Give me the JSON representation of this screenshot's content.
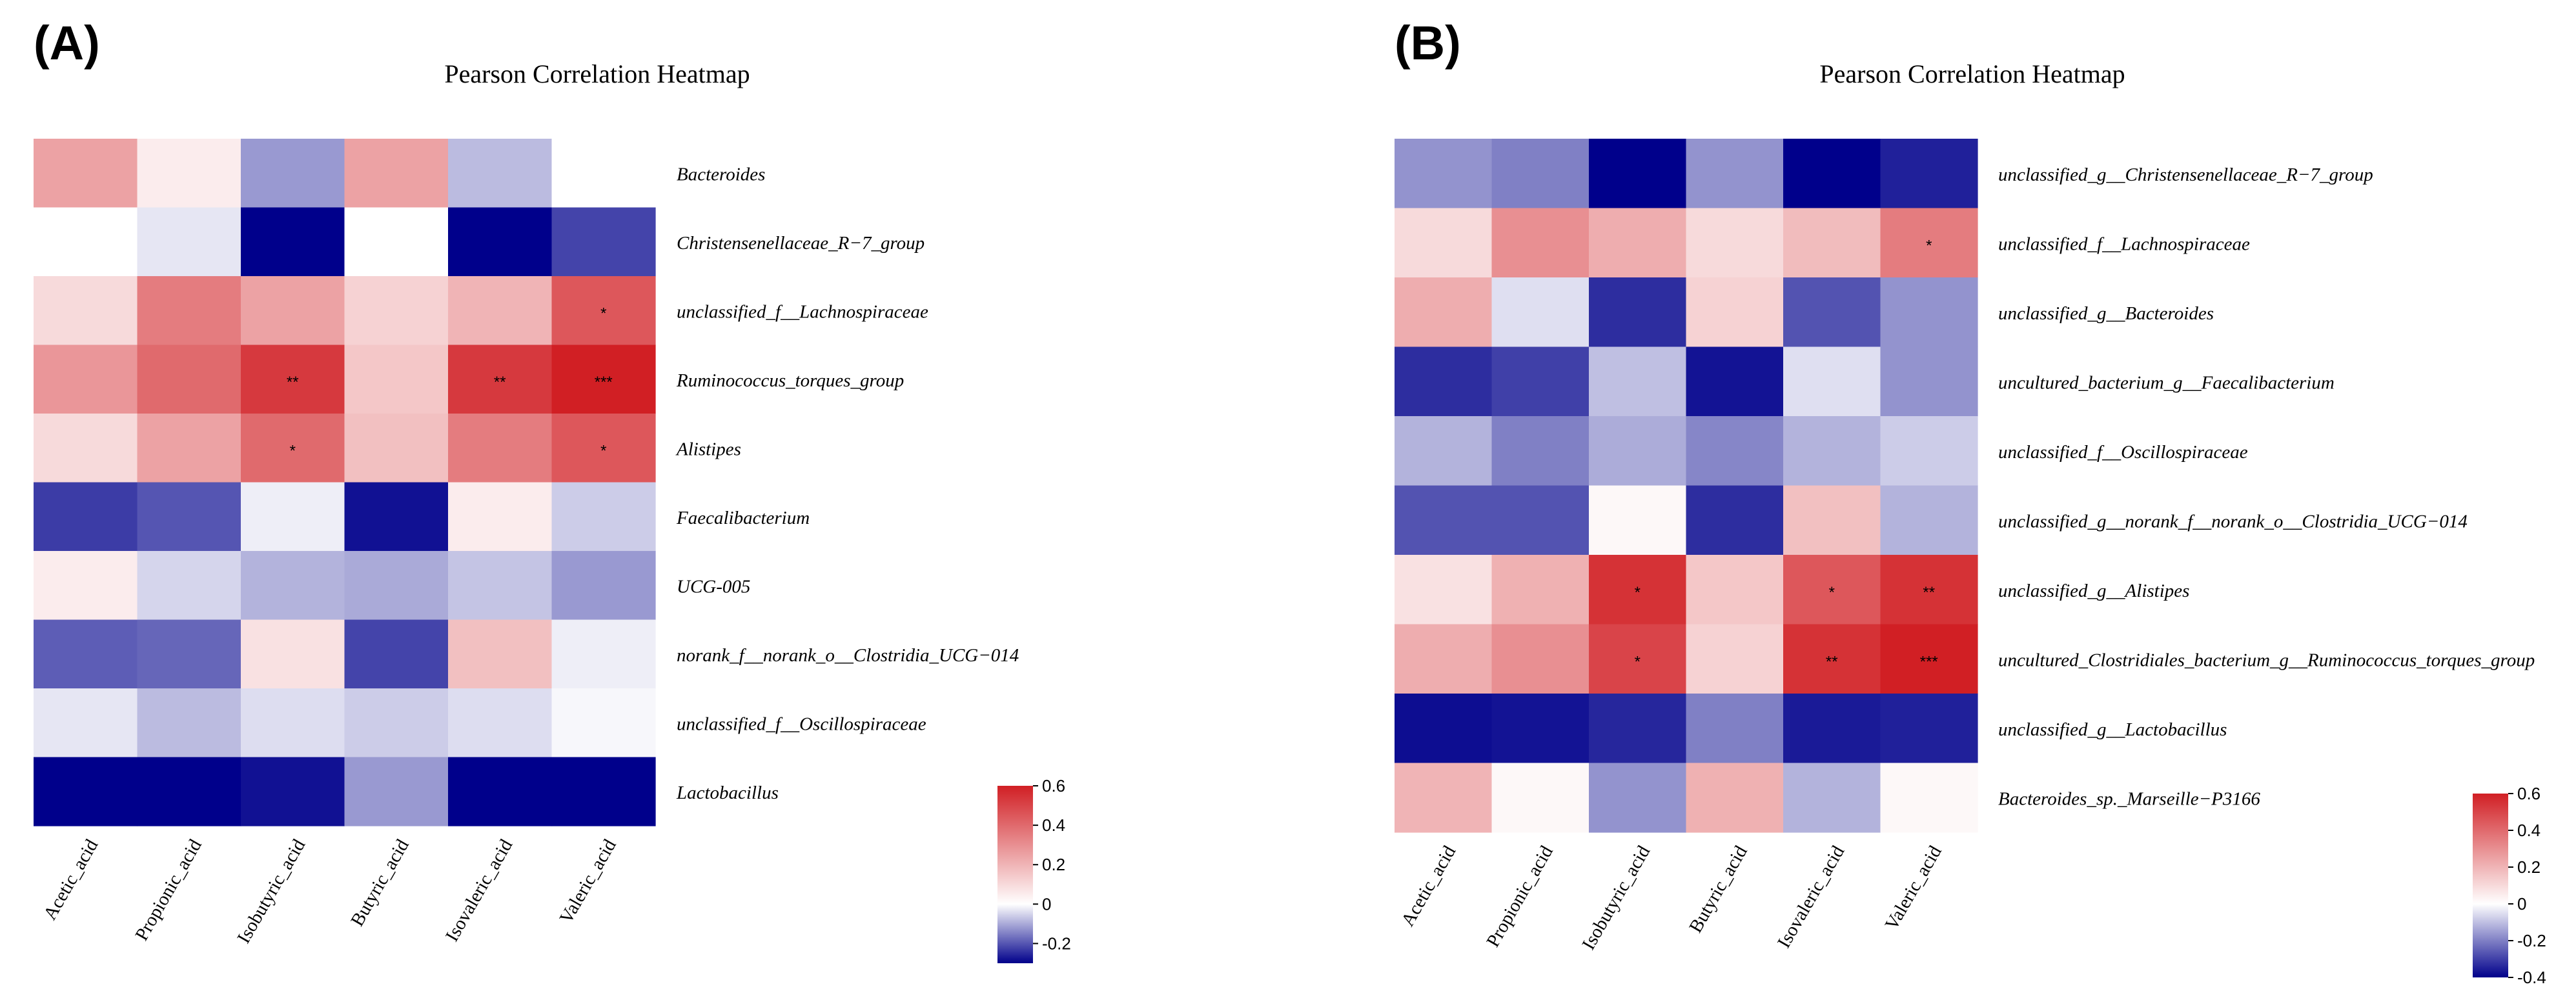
{
  "chart_data": [
    {
      "type": "heatmap",
      "panel_label": "(A)",
      "title": "Pearson Correlation Heatmap",
      "columns": [
        "Acetic_acid",
        "Propionic_acid",
        "Isobutyric_acid",
        "Butyric_acid",
        "Isovaleric_acid",
        "Valeric_acid"
      ],
      "rows": [
        "Bacteroides",
        "Christensenellaceae_R−7_group",
        "unclassified_f__Lachnospiraceae",
        "Ruminococcus_torques_group",
        "Alistipes",
        "Faecalibacterium",
        "UCG-005",
        "norank_f__norank_o__Clostridia_UCG−014",
        "unclassified_f__Oscillospiraceae",
        "Lactobacillus"
      ],
      "values": [
        [
          0.25,
          0.05,
          -0.12,
          0.25,
          -0.08,
          0.0
        ],
        [
          0.0,
          -0.03,
          -0.3,
          0.0,
          -0.3,
          -0.22
        ],
        [
          0.1,
          0.35,
          0.25,
          0.12,
          0.2,
          0.45
        ],
        [
          0.28,
          0.4,
          0.53,
          0.15,
          0.53,
          0.6
        ],
        [
          0.1,
          0.25,
          0.4,
          0.17,
          0.35,
          0.45
        ],
        [
          -0.23,
          -0.2,
          -0.02,
          -0.28,
          0.05,
          -0.06
        ],
        [
          0.05,
          -0.05,
          -0.09,
          -0.1,
          -0.07,
          -0.12
        ],
        [
          -0.19,
          -0.18,
          0.08,
          -0.22,
          0.17,
          -0.02
        ],
        [
          -0.03,
          -0.08,
          -0.04,
          -0.06,
          -0.04,
          -0.01
        ],
        [
          -0.3,
          -0.3,
          -0.28,
          -0.12,
          -0.3,
          -0.3
        ]
      ],
      "significance": [
        [
          "",
          "",
          "",
          "",
          "",
          ""
        ],
        [
          "",
          "",
          "",
          "",
          "",
          ""
        ],
        [
          "",
          "",
          "",
          "",
          "",
          "*"
        ],
        [
          "",
          "",
          "**",
          "",
          "**",
          "***"
        ],
        [
          "",
          "",
          "*",
          "",
          "",
          "*"
        ],
        [
          "",
          "",
          "",
          "",
          "",
          ""
        ],
        [
          "",
          "",
          "",
          "",
          "",
          ""
        ],
        [
          "",
          "",
          "",
          "",
          "",
          ""
        ],
        [
          "",
          "",
          "",
          "",
          "",
          ""
        ],
        [
          "",
          "",
          "",
          "",
          "",
          ""
        ]
      ],
      "colorbar": {
        "vmin": -0.3,
        "vmax": 0.6,
        "ticks": [
          "0.6",
          "0.4",
          "0.2",
          "0",
          "-0.2"
        ],
        "tick_values": [
          0.6,
          0.4,
          0.2,
          0,
          -0.2
        ]
      },
      "colors": {
        "low": "#00008b",
        "mid": "#ffffff",
        "high": "#d11f24"
      }
    },
    {
      "type": "heatmap",
      "panel_label": "(B)",
      "title": "Pearson Correlation Heatmap",
      "columns": [
        "Acetic_acid",
        "Propionic_acid",
        "Isobutyric_acid",
        "Butyric_acid",
        "Isovaleric_acid",
        "Valeric_acid"
      ],
      "rows": [
        "unclassified_g__Christensenellaceae_R−7_group",
        "unclassified_f__Lachnospiraceae",
        "unclassified_g__Bacteroides",
        "uncultured_bacterium_g__Faecalibacterium",
        "unclassified_f__Oscillospiraceae",
        "unclassified_g__norank_f__norank_o__Clostridia_UCG−014",
        "unclassified_g__Alistipes",
        "uncultured_Clostridiales_bacterium_g__Ruminococcus_torques_group",
        "unclassified_g__Lactobacillus",
        "Bacteroides_sp._Marseille−P3166"
      ],
      "values": [
        [
          -0.17,
          -0.2,
          -0.4,
          -0.17,
          -0.4,
          -0.35
        ],
        [
          0.1,
          0.3,
          0.22,
          0.1,
          0.18,
          0.35
        ],
        [
          0.22,
          -0.05,
          -0.33,
          0.12,
          -0.27,
          -0.17
        ],
        [
          -0.33,
          -0.3,
          -0.1,
          -0.37,
          -0.05,
          -0.17
        ],
        [
          -0.12,
          -0.2,
          -0.13,
          -0.19,
          -0.12,
          -0.08
        ],
        [
          -0.27,
          -0.27,
          0.02,
          -0.33,
          0.17,
          -0.12
        ],
        [
          0.08,
          0.21,
          0.55,
          0.15,
          0.45,
          0.55
        ],
        [
          0.22,
          0.3,
          0.5,
          0.12,
          0.55,
          0.6
        ],
        [
          -0.38,
          -0.37,
          -0.34,
          -0.2,
          -0.36,
          -0.35
        ],
        [
          0.2,
          0.02,
          -0.17,
          0.21,
          -0.12,
          0.02
        ]
      ],
      "significance": [
        [
          "",
          "",
          "",
          "",
          "",
          ""
        ],
        [
          "",
          "",
          "",
          "",
          "",
          "*"
        ],
        [
          "",
          "",
          "",
          "",
          "",
          ""
        ],
        [
          "",
          "",
          "",
          "",
          "",
          ""
        ],
        [
          "",
          "",
          "",
          "",
          "",
          ""
        ],
        [
          "",
          "",
          "",
          "",
          "",
          ""
        ],
        [
          "",
          "",
          "*",
          "",
          "*",
          "**"
        ],
        [
          "",
          "",
          "*",
          "",
          "**",
          "***"
        ],
        [
          "",
          "",
          "",
          "",
          "",
          ""
        ],
        [
          "",
          "",
          "",
          "",
          "",
          ""
        ]
      ],
      "colorbar": {
        "vmin": -0.4,
        "vmax": 0.6,
        "ticks": [
          "0.6",
          "0.4",
          "0.2",
          "0",
          "-0.2",
          "-0.4"
        ],
        "tick_values": [
          0.6,
          0.4,
          0.2,
          0,
          -0.2,
          -0.4
        ]
      },
      "colors": {
        "low": "#00008b",
        "mid": "#ffffff",
        "high": "#d11f24"
      }
    }
  ]
}
